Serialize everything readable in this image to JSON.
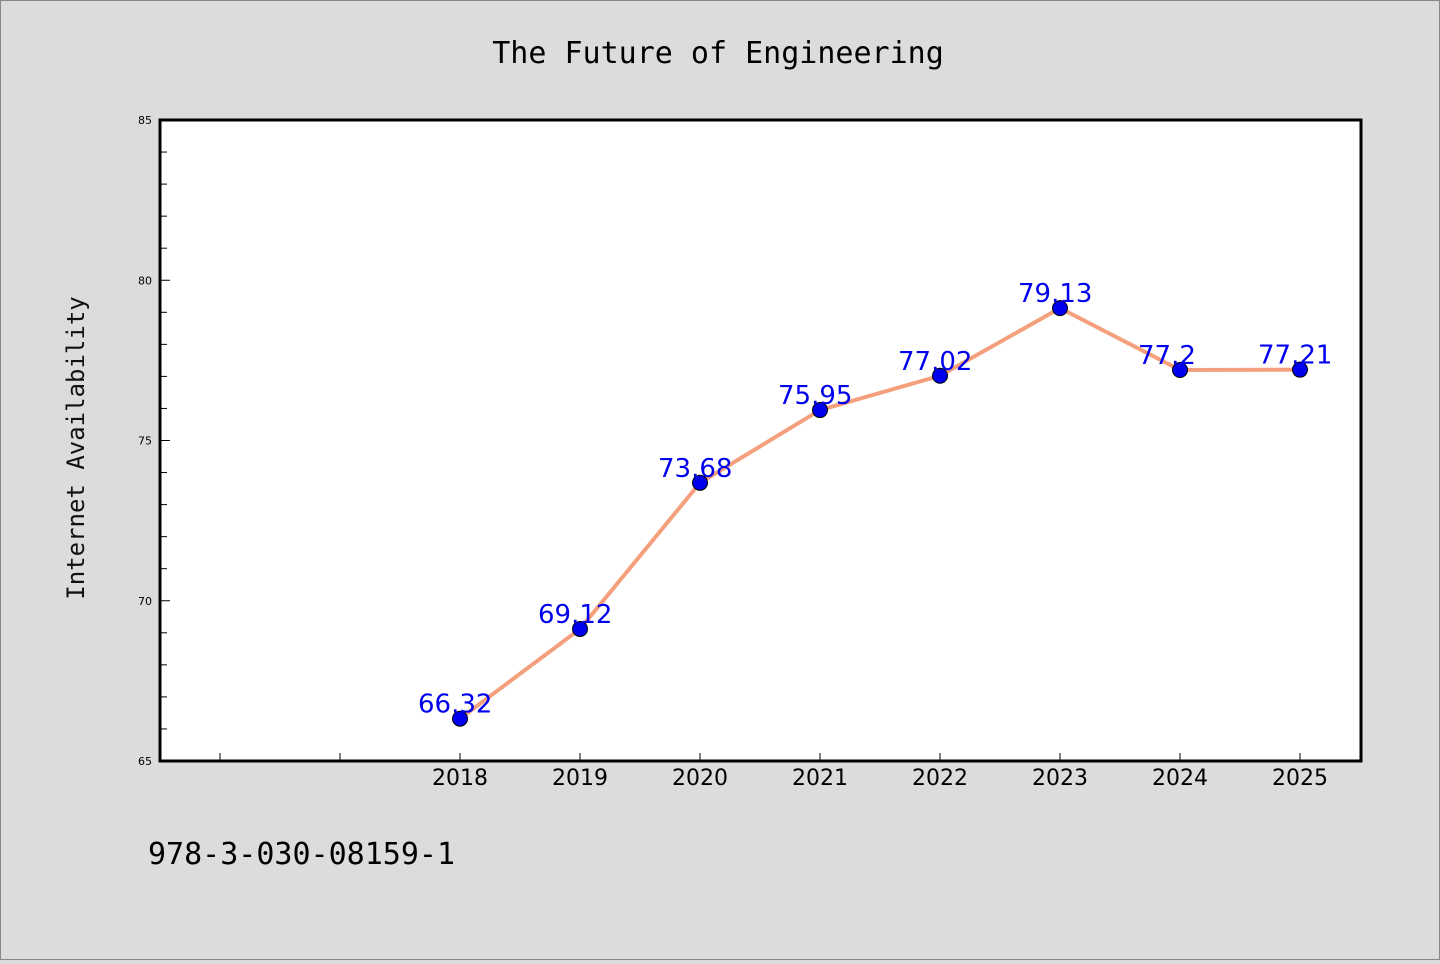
{
  "chart_data": {
    "type": "line",
    "title": "The Future of Engineering",
    "xlabel": "",
    "ylabel": "Internet Availability",
    "categories": [
      "2018",
      "2019",
      "2020",
      "2021",
      "2022",
      "2023",
      "2024",
      "2025"
    ],
    "series": [
      {
        "values": [
          66.32,
          69.12,
          73.68,
          75.95,
          77.02,
          79.13,
          77.2,
          77.21
        ],
        "data_labels": [
          "66.32",
          "69.12",
          "73.68",
          "75.95",
          "77.02",
          "79.13",
          "77.2",
          "77.21"
        ]
      }
    ],
    "ylim": [
      65,
      85
    ],
    "y_ticks": [
      "65",
      "70",
      "75",
      "80",
      "85"
    ],
    "grid": false,
    "line_color": "#f4a07c",
    "marker_color": "#0000ee",
    "label_color": "#0000ee"
  },
  "footer": {
    "text": "978-3-030-08159-1"
  }
}
